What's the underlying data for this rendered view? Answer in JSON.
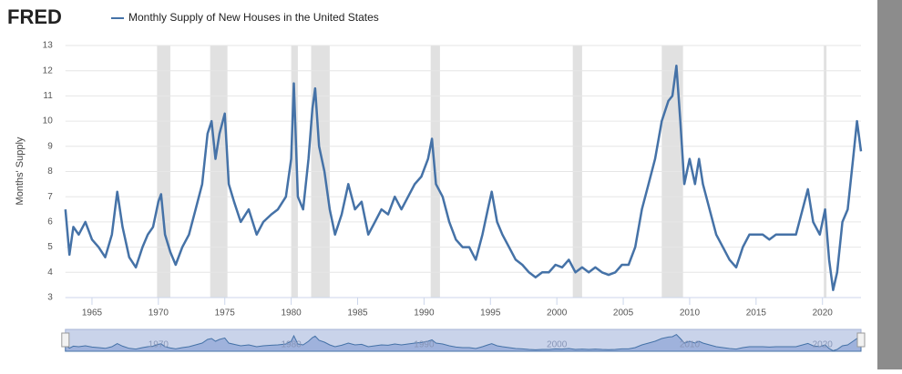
{
  "chart_data": {
    "type": "line",
    "brand": "FRED",
    "title": "Monthly Supply of New Houses in the United States",
    "y_label": "Months' Supply",
    "x": [
      1963.0,
      1963.3,
      1963.6,
      1964.0,
      1964.5,
      1965.0,
      1965.5,
      1966.0,
      1966.5,
      1966.9,
      1967.3,
      1967.8,
      1968.3,
      1968.8,
      1969.2,
      1969.6,
      1970.0,
      1970.2,
      1970.5,
      1970.9,
      1971.3,
      1971.8,
      1972.3,
      1972.8,
      1973.3,
      1973.7,
      1974.0,
      1974.3,
      1974.6,
      1975.0,
      1975.3,
      1975.7,
      1976.2,
      1976.8,
      1977.4,
      1977.9,
      1978.5,
      1979.0,
      1979.6,
      1980.0,
      1980.2,
      1980.5,
      1980.9,
      1981.3,
      1981.6,
      1981.8,
      1982.1,
      1982.5,
      1982.9,
      1983.3,
      1983.8,
      1984.3,
      1984.8,
      1985.3,
      1985.8,
      1986.3,
      1986.8,
      1987.3,
      1987.8,
      1988.3,
      1988.8,
      1989.3,
      1989.8,
      1990.3,
      1990.6,
      1990.9,
      1991.4,
      1991.9,
      1992.4,
      1992.9,
      1993.4,
      1993.9,
      1994.4,
      1994.8,
      1995.1,
      1995.5,
      1995.9,
      1996.4,
      1996.9,
      1997.4,
      1997.9,
      1998.4,
      1998.9,
      1999.4,
      1999.9,
      2000.4,
      2000.9,
      2001.4,
      2001.9,
      2002.4,
      2002.9,
      2003.4,
      2003.9,
      2004.4,
      2004.9,
      2005.4,
      2005.9,
      2006.4,
      2006.9,
      2007.4,
      2007.9,
      2008.4,
      2008.7,
      2009.0,
      2009.3,
      2009.6,
      2010.0,
      2010.4,
      2010.7,
      2011.0,
      2011.5,
      2012.0,
      2012.5,
      2013.0,
      2013.5,
      2014.0,
      2014.5,
      2015.0,
      2015.5,
      2016.0,
      2016.5,
      2017.0,
      2017.5,
      2018.0,
      2018.5,
      2018.9,
      2019.3,
      2019.8,
      2020.2,
      2020.5,
      2020.8,
      2021.1,
      2021.5,
      2021.9,
      2022.3,
      2022.6,
      2022.9
    ],
    "series": [
      {
        "name": "Monthly Supply of New Houses in the United States",
        "color": "#4572a7",
        "values": [
          6.5,
          4.7,
          5.8,
          5.5,
          6.0,
          5.3,
          5.0,
          4.6,
          5.5,
          7.2,
          5.8,
          4.6,
          4.2,
          5.0,
          5.5,
          5.8,
          6.8,
          7.1,
          5.5,
          4.8,
          4.3,
          5.0,
          5.5,
          6.5,
          7.5,
          9.5,
          10.0,
          8.5,
          9.5,
          10.3,
          7.5,
          6.8,
          6.0,
          6.5,
          5.5,
          6.0,
          6.3,
          6.5,
          7.0,
          8.5,
          11.5,
          7.0,
          6.5,
          8.5,
          10.5,
          11.3,
          9.0,
          8.0,
          6.5,
          5.5,
          6.3,
          7.5,
          6.5,
          6.8,
          5.5,
          6.0,
          6.5,
          6.3,
          7.0,
          6.5,
          7.0,
          7.5,
          7.8,
          8.5,
          9.3,
          7.5,
          7.0,
          6.0,
          5.3,
          5.0,
          5.0,
          4.5,
          5.5,
          6.5,
          7.2,
          6.0,
          5.5,
          5.0,
          4.5,
          4.3,
          4.0,
          3.8,
          4.0,
          4.0,
          4.3,
          4.2,
          4.5,
          4.0,
          4.2,
          4.0,
          4.2,
          4.0,
          3.9,
          4.0,
          4.3,
          4.3,
          5.0,
          6.5,
          7.5,
          8.5,
          10.0,
          10.8,
          11.0,
          12.2,
          10.0,
          7.5,
          8.5,
          7.5,
          8.5,
          7.5,
          6.5,
          5.5,
          5.0,
          4.5,
          4.2,
          5.0,
          5.5,
          5.5,
          5.5,
          5.3,
          5.5,
          5.5,
          5.5,
          5.5,
          6.5,
          7.3,
          6.0,
          5.5,
          6.5,
          4.5,
          3.3,
          4.0,
          6.0,
          6.5,
          8.5,
          10.0,
          8.8
        ]
      }
    ],
    "xlim": [
      1963,
      2022.9
    ],
    "ylim": [
      3,
      13
    ],
    "xticks": [
      1965,
      1970,
      1975,
      1980,
      1985,
      1990,
      1995,
      2000,
      2005,
      2010,
      2015,
      2020
    ],
    "yticks": [
      3,
      4,
      5,
      6,
      7,
      8,
      9,
      10,
      11,
      12,
      13
    ],
    "grid": true,
    "recessions": [
      [
        1969.9,
        1970.9
      ],
      [
        1973.9,
        1975.2
      ],
      [
        1980.0,
        1980.5
      ],
      [
        1981.5,
        1982.9
      ],
      [
        1990.5,
        1991.2
      ],
      [
        2001.2,
        2001.9
      ],
      [
        2007.9,
        2009.5
      ],
      [
        2020.1,
        2020.3
      ]
    ],
    "navigator_ticks": [
      1970,
      1980,
      1990,
      2000,
      2010,
      2020
    ]
  }
}
